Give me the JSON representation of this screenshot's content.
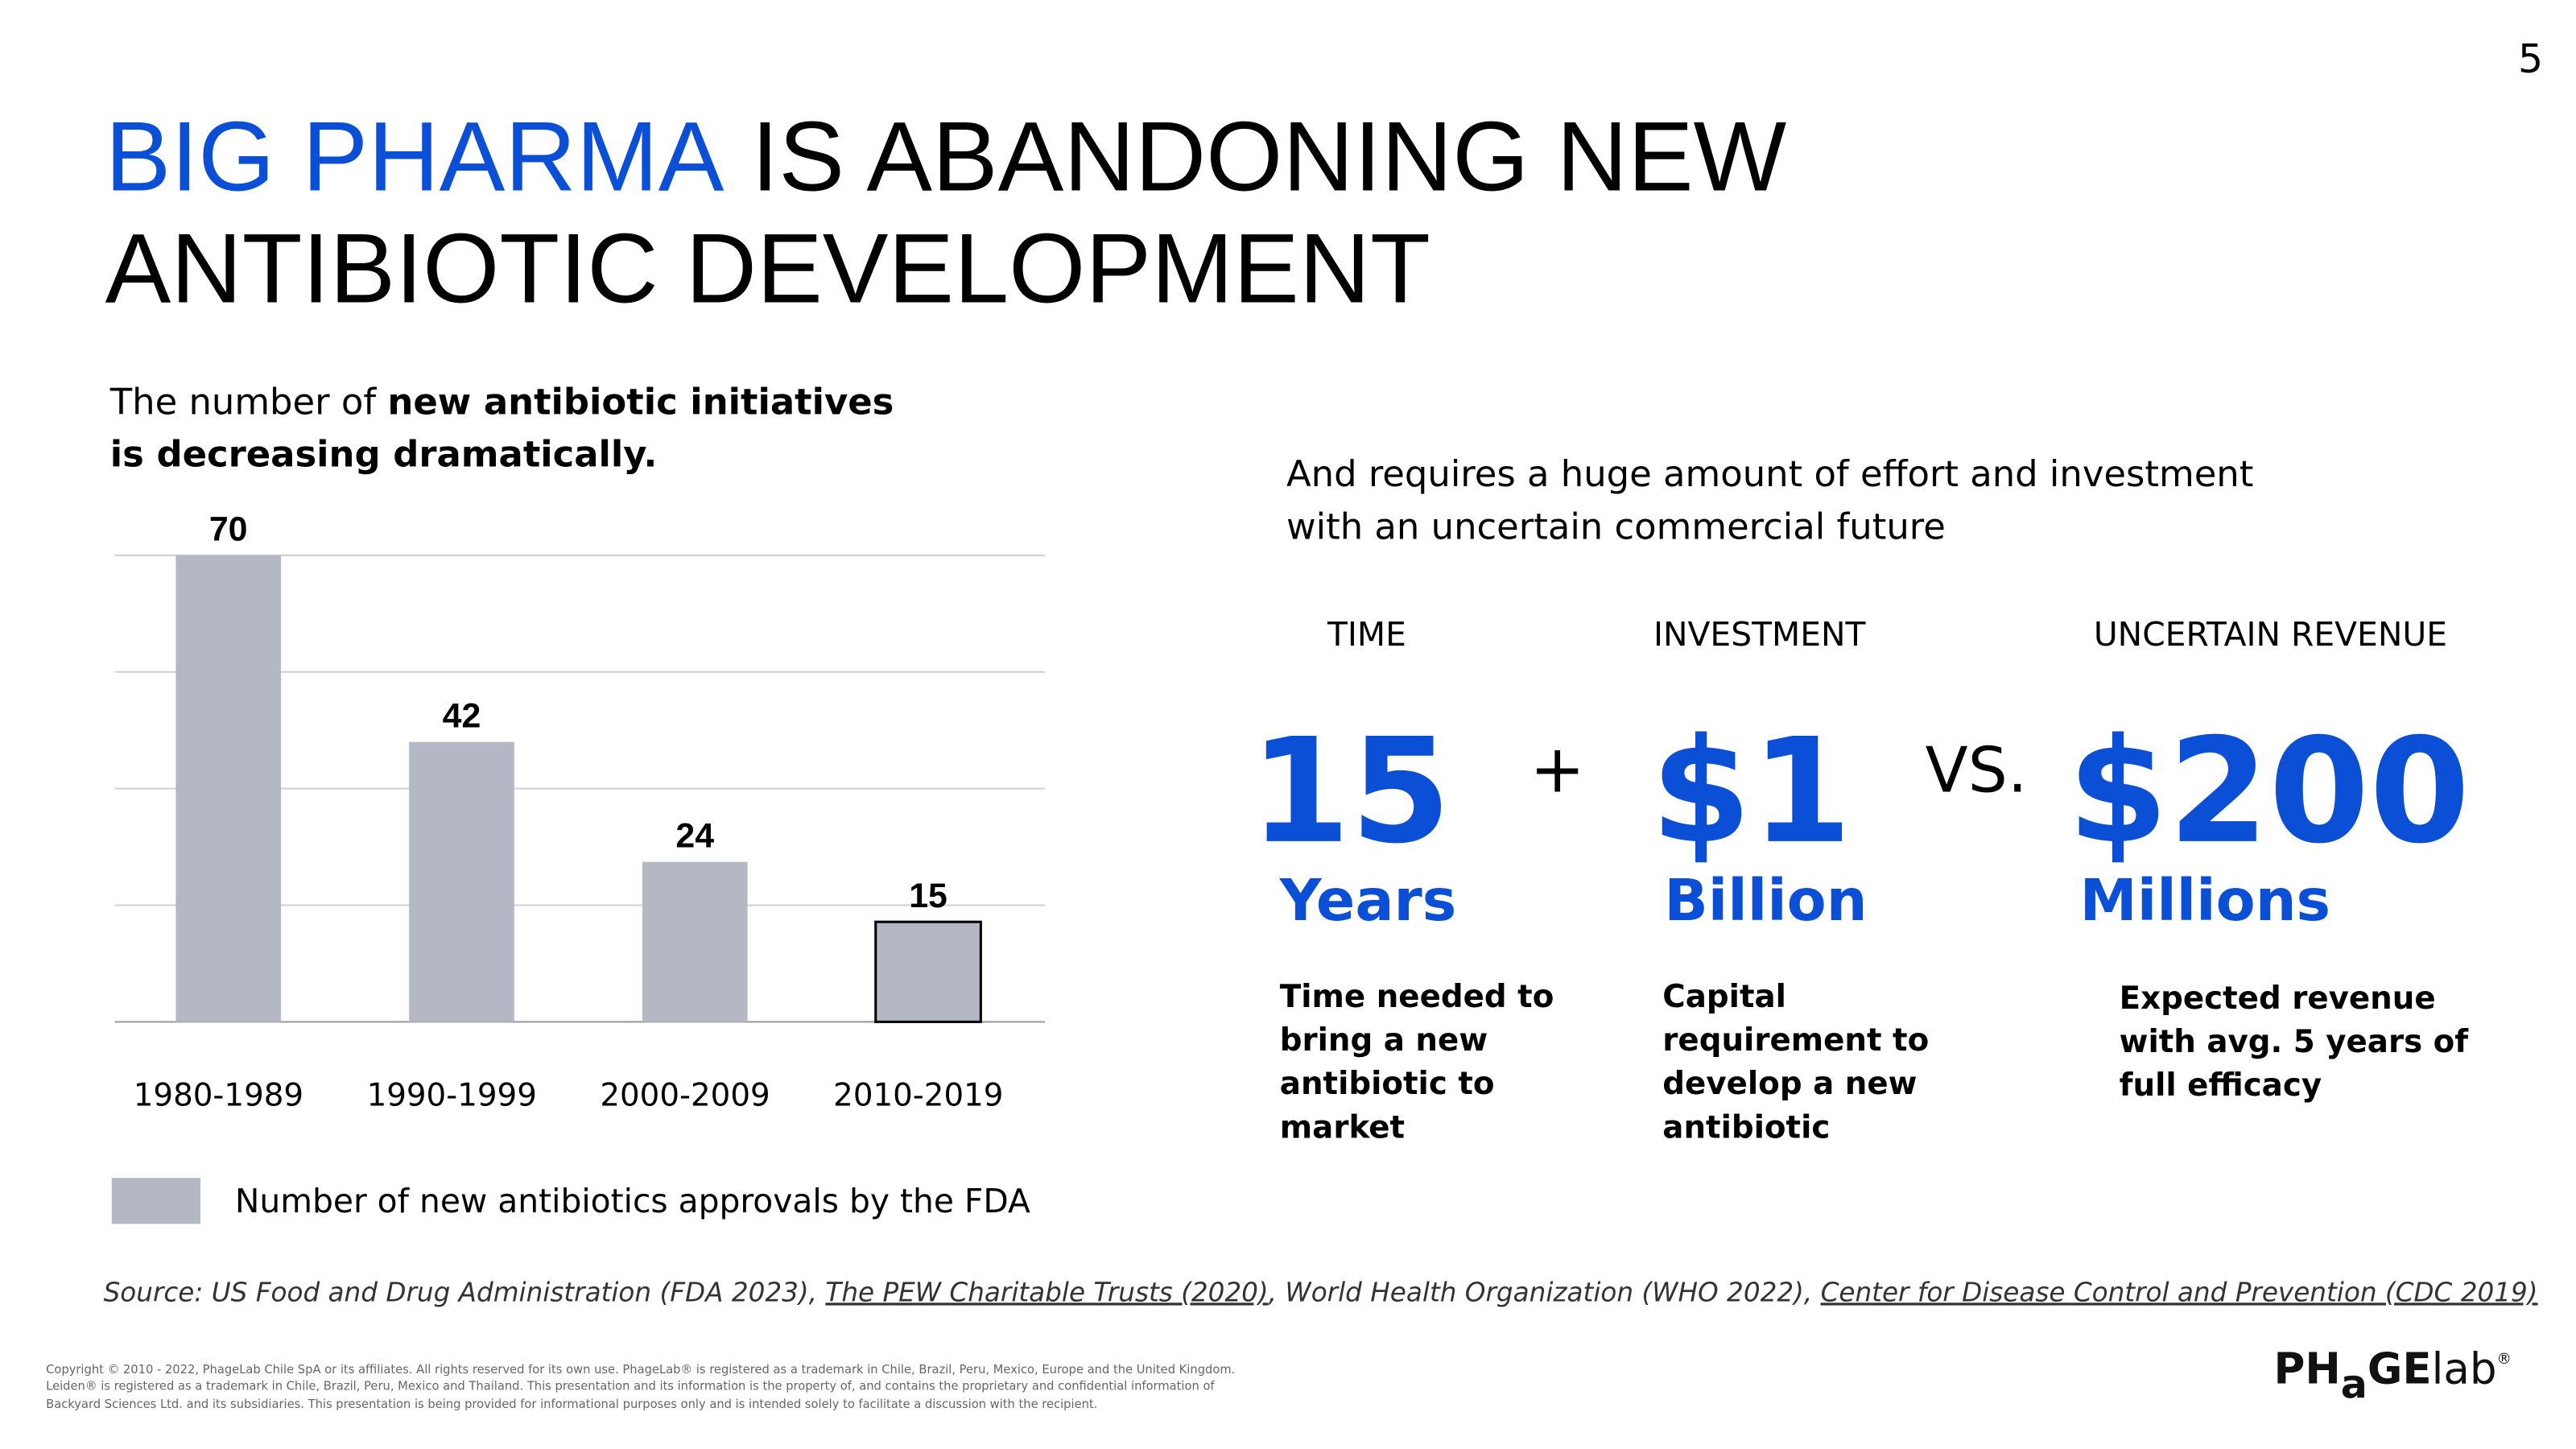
{
  "page_number": "5",
  "title": {
    "highlight": "BIG PHARMA",
    "line1_rest": " IS ABANDONING NEW",
    "line2": "ANTIBIOTIC DEVELOPMENT"
  },
  "left_intro": {
    "line1_plain": "The number of ",
    "line1_bold": "new antibiotic initiatives",
    "line2_bold": "is decreasing dramatically."
  },
  "chart_data": {
    "type": "bar",
    "categories": [
      "1980-1989",
      "1990-1999",
      "2000-2009",
      "2010-2019"
    ],
    "series": [
      {
        "name": "Number of new antibiotics approvals by the FDA",
        "color": "#b3b8c4",
        "values": [
          70,
          42,
          24,
          15
        ]
      }
    ],
    "ylim": [
      0,
      70
    ],
    "yticks": [
      0,
      17.5,
      35,
      52.5,
      70
    ],
    "grid": true,
    "legend": "bottom-left"
  },
  "right_intro": [
    "And requires a huge amount of effort and investment",
    "with an uncertain commercial future"
  ],
  "metrics": [
    {
      "label": "TIME",
      "figure": "15",
      "unit": "Years",
      "description": [
        "Time needed to",
        "bring a new",
        "antibiotic to",
        "market"
      ]
    },
    {
      "label": "INVESTMENT",
      "figure": "$1",
      "unit": "Billion",
      "description": [
        "Capital",
        "requirement to",
        "develop a new",
        "antibiotic"
      ]
    },
    {
      "label": "UNCERTAIN REVENUE",
      "figure": "$200",
      "unit": "Millions",
      "description": [
        "Expected revenue",
        "with avg. 5 years of",
        "full efficacy"
      ]
    }
  ],
  "operators": [
    "+",
    "VS."
  ],
  "source": {
    "part1": "Source: US Food and Drug Administration (FDA 2023), ",
    "link1": "The PEW Charitable Trusts (2020)",
    "part2": ", World Health Organization (WHO 2022), ",
    "link2": "Center for Disease Control and Prevention (CDC 2019)"
  },
  "copyright": [
    "Copyright © 2010 - 2022, PhageLab Chile SpA or its affiliates. All rights reserved for its own use. PhageLab® is registered as a trademark in Chile, Brazil, Peru, Mexico, Europe and the United Kingdom.",
    "Leiden® is registered as a trademark in Chile, Brazil, Peru, Mexico and Thailand. This presentation and its information is the property of, and contains the proprietary and confidential information of",
    "Backyard Sciences Ltd. and its subsidiaries. This presentation is being provided for informational purposes only and is intended solely to facilitate a discussion with the recipient."
  ],
  "logo": {
    "part1": "PH",
    "part2": "a",
    "part3": "GE",
    "part4": "lab",
    "mark": "®"
  }
}
